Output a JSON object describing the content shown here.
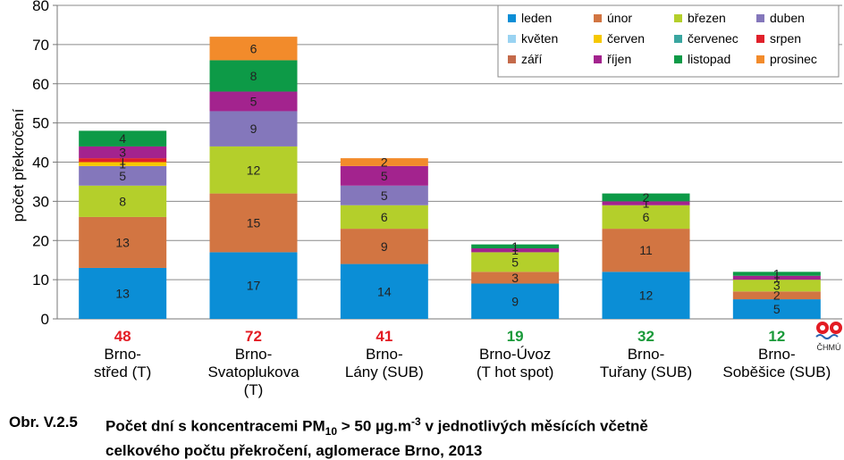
{
  "chart_data": {
    "type": "bar",
    "stacked": true,
    "ylabel": "počet překročení",
    "ylim": [
      0,
      80
    ],
    "yticks": [
      0,
      10,
      20,
      30,
      40,
      50,
      60,
      70,
      80
    ],
    "grid": true,
    "legend_position": "top-right",
    "categories": [
      [
        "Brno-",
        "střed (T)"
      ],
      [
        "Brno-",
        "Svatoplukova",
        "(T)"
      ],
      [
        "Brno-",
        "Lány (SUB)"
      ],
      [
        "Brno-Úvoz",
        "(T hot spot)"
      ],
      [
        "Brno-",
        "Tuřany (SUB)"
      ],
      [
        "Brno-",
        "Soběšice (SUB)"
      ]
    ],
    "totals": [
      48,
      72,
      41,
      19,
      32,
      12
    ],
    "total_colors": [
      "#e31b23",
      "#e31b23",
      "#e31b23",
      "#1a9a3a",
      "#1a9a3a",
      "#1a9a3a"
    ],
    "series": [
      {
        "name": "leden",
        "color": "#0b8ed6",
        "values": [
          13,
          17,
          14,
          9,
          12,
          5
        ]
      },
      {
        "name": "únor",
        "color": "#d27542",
        "values": [
          13,
          15,
          9,
          3,
          11,
          2
        ]
      },
      {
        "name": "březen",
        "color": "#b4cf2b",
        "values": [
          8,
          12,
          6,
          5,
          6,
          3
        ]
      },
      {
        "name": "duben",
        "color": "#8477bb",
        "values": [
          5,
          9,
          5,
          0,
          0,
          0
        ]
      },
      {
        "name": "květen",
        "color": "#9ad3f2",
        "values": [
          0,
          0,
          0,
          0,
          0,
          0
        ]
      },
      {
        "name": "červen",
        "color": "#f6c800",
        "values": [
          1,
          0,
          0,
          0,
          0,
          0
        ]
      },
      {
        "name": "červenec",
        "color": "#3aa6a0",
        "values": [
          0,
          0,
          0,
          0,
          0,
          0
        ]
      },
      {
        "name": "srpen",
        "color": "#e0202a",
        "values": [
          1,
          0,
          0,
          0,
          0,
          0
        ]
      },
      {
        "name": "září",
        "color": "#c46a4a",
        "values": [
          0,
          0,
          0,
          0,
          0,
          0
        ]
      },
      {
        "name": "říjen",
        "color": "#a3238e",
        "values": [
          3,
          5,
          5,
          1,
          1,
          1
        ]
      },
      {
        "name": "listopad",
        "color": "#0d9a47",
        "values": [
          4,
          8,
          0,
          1,
          2,
          1
        ]
      },
      {
        "name": "prosinec",
        "color": "#f28b2b",
        "values": [
          0,
          6,
          2,
          0,
          0,
          0
        ]
      }
    ]
  },
  "logo": {
    "text": "ČHMÚ",
    "icon": "chmu-logo-icon"
  },
  "caption": {
    "number": "Obr. V.2.5",
    "line1": "Počet dní s koncentracemi PM10 > 50 µg.m-3 v jednotlivých měsících včetně",
    "line2": "celkového počtu překročení, aglomerace Brno, 2013"
  }
}
